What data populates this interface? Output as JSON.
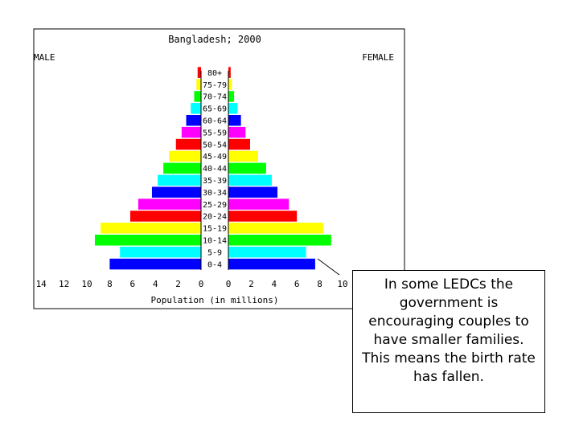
{
  "chart_data": {
    "type": "bar",
    "title": "Bangladesh; 2000",
    "left_label": "MALE",
    "right_label": "FEMALE",
    "xlabel": "Population (in millions)",
    "x_ticks_left": [
      "14",
      "12",
      "10",
      "8",
      "6",
      "4",
      "2",
      "0"
    ],
    "x_ticks_right": [
      "0",
      "2",
      "4",
      "6",
      "8",
      "10"
    ],
    "xlim": [
      0,
      14
    ],
    "categories": [
      "0-4",
      "5-9",
      "10-14",
      "15-19",
      "20-24",
      "25-29",
      "30-34",
      "35-39",
      "40-44",
      "45-49",
      "50-54",
      "55-59",
      "60-64",
      "65-69",
      "70-74",
      "75-79",
      "80+"
    ],
    "series": [
      {
        "name": "MALE",
        "values": [
          8.0,
          7.1,
          9.3,
          8.8,
          6.2,
          5.5,
          4.3,
          3.8,
          3.3,
          2.8,
          2.2,
          1.7,
          1.3,
          0.9,
          0.6,
          0.4,
          0.3
        ]
      },
      {
        "name": "FEMALE",
        "values": [
          7.6,
          6.8,
          9.0,
          8.3,
          6.0,
          5.3,
          4.3,
          3.8,
          3.3,
          2.6,
          1.9,
          1.5,
          1.1,
          0.8,
          0.5,
          0.3,
          0.2
        ]
      }
    ],
    "bar_colors": [
      "#0000ff",
      "#00ffff",
      "#00ff00",
      "#ffff00",
      "#ff0000",
      "#ff00ff"
    ]
  },
  "callout": {
    "text": "In some LEDCs the government is encouraging couples to have smaller families. This means the birth rate has fallen."
  }
}
